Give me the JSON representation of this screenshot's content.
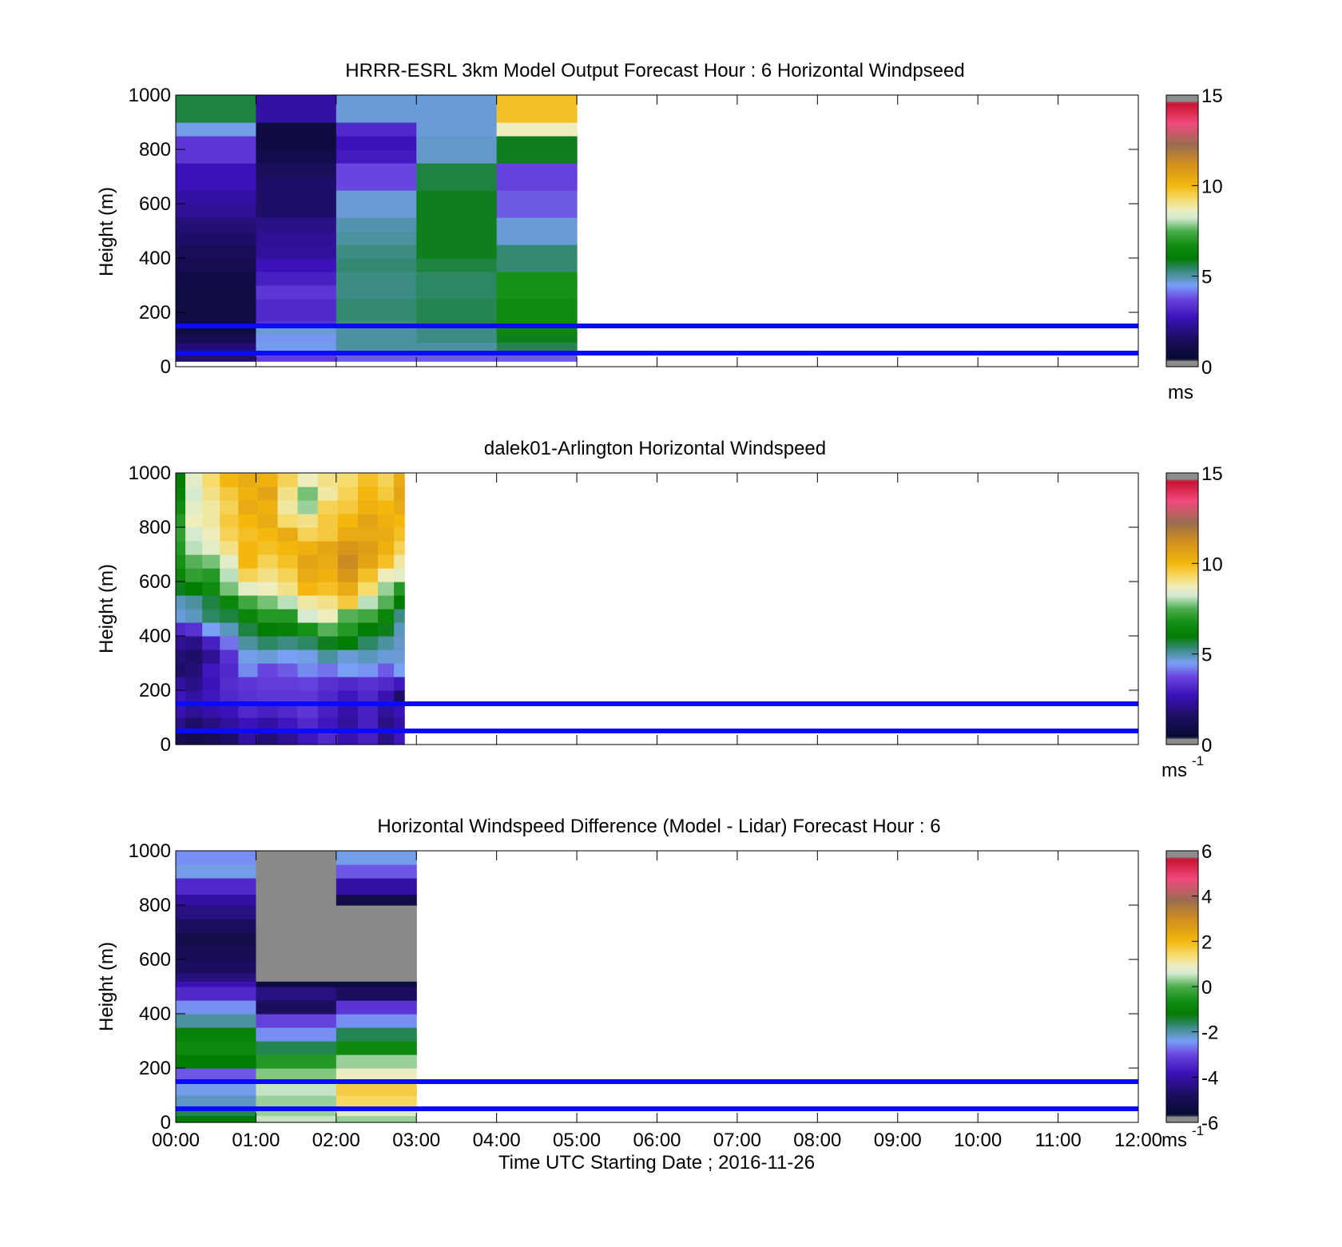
{
  "figure": {
    "xlabel": "Time UTC  Starting Date ; 2016-11-26",
    "x_ticks": [
      "00:00",
      "01:00",
      "02:00",
      "03:00",
      "04:00",
      "05:00",
      "06:00",
      "07:00",
      "08:00",
      "09:00",
      "10:00",
      "11:00",
      "12:00"
    ]
  },
  "palette": {
    "line_color": "#0a0aff",
    "frame_color": "#000000",
    "missing_color": "#898989"
  },
  "colormap_stops": [
    {
      "t": 0.0,
      "c": "#8c8c8c"
    },
    {
      "t": 0.02,
      "c": "#8c8c8c"
    },
    {
      "t": 0.025,
      "c": "#050a30"
    },
    {
      "t": 0.1,
      "c": "#1c0e5e"
    },
    {
      "t": 0.18,
      "c": "#3a12b8"
    },
    {
      "t": 0.25,
      "c": "#6a46e0"
    },
    {
      "t": 0.3,
      "c": "#7aa0f6"
    },
    {
      "t": 0.35,
      "c": "#3d8c86"
    },
    {
      "t": 0.4,
      "c": "#027b02"
    },
    {
      "t": 0.45,
      "c": "#138f13"
    },
    {
      "t": 0.5,
      "c": "#4aab4a"
    },
    {
      "t": 0.55,
      "c": "#d2ead2"
    },
    {
      "t": 0.58,
      "c": "#ededbf"
    },
    {
      "t": 0.62,
      "c": "#f6da6a"
    },
    {
      "t": 0.67,
      "c": "#f3b70d"
    },
    {
      "t": 0.75,
      "c": "#d18f1f"
    },
    {
      "t": 0.82,
      "c": "#9a6d4f"
    },
    {
      "t": 0.9,
      "c": "#f04a7d"
    },
    {
      "t": 0.975,
      "c": "#c8102e"
    },
    {
      "t": 0.98,
      "c": "#8c8c8c"
    },
    {
      "t": 1.0,
      "c": "#8c8c8c"
    }
  ],
  "chart_data": [
    {
      "type": "heatmap",
      "title": "HRRR-ESRL 3km Model Output   Forecast Hour : 6 Horizontal Windpseed",
      "xlabel": "",
      "ylabel": "Height (m)",
      "xlim": [
        0,
        12
      ],
      "ylim": [
        0,
        1000
      ],
      "yticks": [
        "0",
        "200",
        "400",
        "600",
        "800",
        "1000"
      ],
      "colorbar": {
        "min": 0,
        "max": 15,
        "ticks": [
          "0",
          "5",
          "10",
          "15"
        ],
        "unit": "ms",
        "unit_sup": ""
      },
      "reference_lines_y": [
        50,
        150
      ],
      "x_edges": [
        0,
        1,
        2,
        3,
        4,
        5
      ],
      "y_edges": [
        20,
        50,
        60,
        90,
        120,
        150,
        170,
        200,
        250,
        300,
        350,
        400,
        450,
        500,
        550,
        600,
        650,
        700,
        750,
        800,
        850,
        900,
        1000
      ],
      "values": [
        [
          1.5,
          3.4,
          3.8,
          3.8,
          3.8
        ],
        [
          1.5,
          4.5,
          5.2,
          5.2,
          5.4
        ],
        [
          1.5,
          4.5,
          5.0,
          5.0,
          5.5
        ],
        [
          1.0,
          4.3,
          5.0,
          5.2,
          5.8
        ],
        [
          0.6,
          4.6,
          5.0,
          5.2,
          6.5
        ],
        [
          0.6,
          3.2,
          5.2,
          5.5,
          6.6
        ],
        [
          0.6,
          3.0,
          5.3,
          5.5,
          6.6
        ],
        [
          0.6,
          3.0,
          5.3,
          5.5,
          6.6
        ],
        [
          0.6,
          3.3,
          5.2,
          5.4,
          6.8
        ],
        [
          0.7,
          2.8,
          5.2,
          5.4,
          6.8
        ],
        [
          0.9,
          2.5,
          5.3,
          5.6,
          5.3
        ],
        [
          1.1,
          2.1,
          5.2,
          5.8,
          5.3
        ],
        [
          1.4,
          2.0,
          5.0,
          5.8,
          4.6
        ],
        [
          1.6,
          1.8,
          4.9,
          5.8,
          4.6
        ],
        [
          2.0,
          1.4,
          4.6,
          5.8,
          3.8
        ],
        [
          2.2,
          1.4,
          4.6,
          5.8,
          3.8
        ],
        [
          2.5,
          1.4,
          3.6,
          5.6,
          3.5
        ],
        [
          2.5,
          1.2,
          3.6,
          5.6,
          3.5
        ],
        [
          3.3,
          0.8,
          2.7,
          4.7,
          5.8
        ],
        [
          3.3,
          0.5,
          2.5,
          4.7,
          5.8
        ],
        [
          4.5,
          0.5,
          3.0,
          4.6,
          8.8
        ],
        [
          5.6,
          2.2,
          4.6,
          4.6,
          10.0
        ]
      ]
    },
    {
      "type": "heatmap",
      "title": "dalek01-Arlington  Horizontal Windspeed",
      "xlabel": "",
      "ylabel": "Height (m)",
      "xlim": [
        0,
        12
      ],
      "ylim": [
        0,
        1000
      ],
      "yticks": [
        "0",
        "200",
        "400",
        "600",
        "800",
        "1000"
      ],
      "colorbar": {
        "min": 0,
        "max": 15,
        "ticks": [
          "0",
          "5",
          "10",
          "15"
        ],
        "unit": "ms",
        "unit_sup": "-1"
      },
      "reference_lines_y": [
        50,
        150
      ],
      "x_edges": [
        0,
        0.12,
        0.33,
        0.55,
        0.78,
        1.02,
        1.27,
        1.52,
        1.77,
        2.02,
        2.27,
        2.52,
        2.72,
        2.85
      ],
      "y_edges": [
        0,
        50,
        100,
        150,
        200,
        250,
        300,
        350,
        400,
        450,
        500,
        550,
        600,
        650,
        700,
        750,
        800,
        850,
        900,
        950,
        1000
      ],
      "values": [
        [
          1.0,
          0.8,
          1.0,
          1.4,
          2.2,
          1.6,
          2.0,
          2.6,
          3.0,
          2.4,
          2.8,
          1.8,
          2.6
        ],
        [
          1.8,
          1.4,
          1.7,
          2.1,
          2.5,
          2.2,
          2.6,
          3.0,
          2.6,
          2.1,
          2.8,
          1.8,
          2.2
        ],
        [
          2.4,
          2.0,
          2.3,
          2.5,
          3.0,
          2.8,
          3.0,
          3.3,
          2.8,
          2.3,
          2.8,
          2.1,
          2.5
        ],
        [
          2.6,
          2.2,
          2.6,
          3.0,
          3.2,
          3.3,
          3.3,
          3.3,
          3.0,
          2.6,
          3.0,
          2.4,
          1.4
        ],
        [
          2.2,
          1.8,
          2.5,
          3.1,
          3.3,
          3.4,
          3.4,
          3.5,
          3.2,
          3.0,
          3.2,
          3.0,
          2.6
        ],
        [
          1.4,
          1.6,
          2.6,
          3.0,
          4.2,
          3.6,
          3.8,
          4.2,
          4.0,
          4.4,
          4.3,
          3.8,
          4.4
        ],
        [
          1.6,
          1.4,
          2.0,
          3.2,
          4.5,
          4.6,
          4.4,
          4.5,
          5.0,
          4.6,
          4.8,
          4.6,
          4.6
        ],
        [
          2.0,
          1.8,
          2.8,
          4.0,
          5.0,
          5.4,
          5.2,
          5.4,
          5.8,
          6.0,
          5.4,
          5.0,
          4.7
        ],
        [
          3.0,
          3.2,
          4.4,
          4.8,
          5.6,
          6.0,
          6.2,
          6.8,
          7.6,
          7.0,
          6.0,
          5.8,
          4.8
        ],
        [
          4.6,
          4.8,
          5.4,
          5.6,
          6.4,
          7.0,
          7.0,
          8.4,
          8.8,
          7.6,
          7.4,
          6.4,
          5.2
        ],
        [
          4.8,
          5.0,
          5.6,
          6.4,
          7.4,
          7.8,
          8.2,
          9.0,
          9.2,
          9.8,
          8.2,
          7.6,
          6.0
        ],
        [
          5.8,
          6.0,
          6.6,
          7.8,
          8.6,
          8.8,
          9.2,
          10.2,
          10.0,
          10.6,
          9.4,
          8.0,
          7.0
        ],
        [
          6.4,
          7.2,
          7.0,
          8.2,
          9.6,
          9.2,
          9.6,
          10.6,
          10.4,
          11.2,
          10.0,
          8.8,
          8.6
        ],
        [
          6.8,
          7.6,
          7.8,
          8.6,
          10.2,
          9.6,
          10.0,
          10.8,
          10.6,
          11.6,
          10.8,
          10.0,
          9.0
        ],
        [
          7.0,
          8.2,
          8.6,
          9.2,
          10.2,
          10.0,
          10.2,
          10.4,
          10.8,
          11.2,
          11.0,
          10.4,
          9.6
        ],
        [
          7.2,
          8.4,
          8.8,
          9.6,
          10.0,
          10.2,
          10.6,
          9.6,
          9.8,
          10.6,
          10.6,
          10.6,
          10.0
        ],
        [
          7.0,
          8.8,
          9.0,
          9.8,
          10.2,
          10.6,
          9.4,
          9.2,
          9.8,
          10.2,
          10.8,
          10.4,
          10.2
        ],
        [
          6.6,
          8.6,
          9.0,
          9.6,
          10.6,
          10.4,
          9.0,
          8.0,
          9.6,
          9.8,
          10.4,
          10.2,
          10.6
        ],
        [
          6.2,
          8.4,
          9.2,
          9.8,
          10.4,
          10.8,
          9.2,
          7.8,
          9.0,
          9.6,
          10.2,
          9.8,
          10.8
        ],
        [
          6.0,
          8.6,
          9.4,
          10.2,
          10.6,
          10.4,
          9.6,
          8.8,
          9.2,
          9.4,
          10.0,
          9.6,
          10.6
        ]
      ]
    },
    {
      "type": "heatmap",
      "title": "Horizontal Windspeed Difference (Model - Lidar) Forecast Hour : 6",
      "xlabel": "Time UTC  Starting Date ; 2016-11-26",
      "ylabel": "Height (m)",
      "xlim": [
        0,
        12
      ],
      "ylim": [
        0,
        1000
      ],
      "yticks": [
        "0",
        "200",
        "400",
        "600",
        "800",
        "1000"
      ],
      "colorbar": {
        "min": -6,
        "max": 6,
        "ticks": [
          "-6",
          "-4",
          "-2",
          "0",
          "2",
          "4",
          "6"
        ],
        "unit": "ms",
        "unit_sup": "-1"
      },
      "reference_lines_y": [
        50,
        150
      ],
      "x_edges": [
        0,
        1,
        2,
        3
      ],
      "y_edges": [
        0,
        25,
        50,
        100,
        150,
        200,
        250,
        300,
        350,
        400,
        450,
        500,
        520,
        550,
        600,
        650,
        700,
        750,
        800,
        840,
        900,
        950,
        1000
      ],
      "values": [
        [
          -1.2,
          0.6,
          0.4
        ],
        [
          -1.6,
          0.4,
          0.8
        ],
        [
          -2.2,
          0.4,
          1.6
        ],
        [
          -2.4,
          0.6,
          1.8
        ],
        [
          -3.0,
          0.3,
          1.0
        ],
        [
          -1.2,
          -0.4,
          0.4
        ],
        [
          -0.8,
          -1.6,
          -0.8
        ],
        [
          -1.0,
          -2.6,
          -1.6
        ],
        [
          -2.0,
          -3.2,
          -2.6
        ],
        [
          -2.6,
          -5.0,
          -3.4
        ],
        [
          -3.6,
          -4.6,
          -5.0
        ],
        [
          -4.0,
          -5.6,
          -5.6
        ],
        [
          -4.6,
          null,
          null
        ],
        [
          -5.0,
          null,
          null
        ],
        [
          -5.2,
          null,
          null
        ],
        [
          -5.4,
          null,
          null
        ],
        [
          -5.0,
          null,
          null
        ],
        [
          -4.6,
          null,
          null
        ],
        [
          -4.2,
          null,
          -5.4
        ],
        [
          -3.6,
          null,
          -4.2
        ],
        [
          -2.4,
          null,
          -3.0
        ],
        [
          -2.6,
          null,
          -2.4
        ]
      ]
    }
  ]
}
